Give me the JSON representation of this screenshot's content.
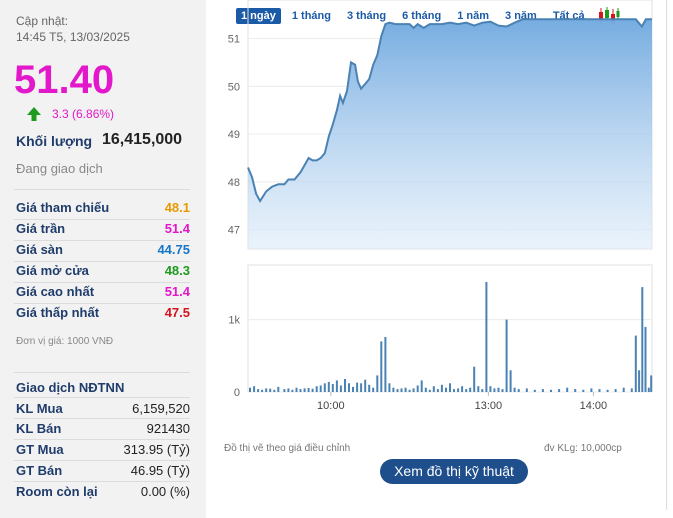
{
  "summary": {
    "update_label": "Cập nhật:",
    "update_time": "14:45 T5, 13/03/2025",
    "price": "51.40",
    "change": "3.3 (6.86%)",
    "volume_label": "Khối lượng",
    "volume_value": "16,415,000",
    "status": "Đang giao dịch"
  },
  "price_info": [
    {
      "label": "Giá tham chiếu",
      "value": "48.1",
      "color": "#e89a00"
    },
    {
      "label": "Giá trần",
      "value": "51.4",
      "color": "#e218ca"
    },
    {
      "label": "Giá sàn",
      "value": "44.75",
      "color": "#1677c8"
    },
    {
      "label": "Giá mở cửa",
      "value": "48.3",
      "color": "#1e9a1e"
    },
    {
      "label": "Giá cao nhất",
      "value": "51.4",
      "color": "#e218ca"
    },
    {
      "label": "Giá thấp nhất",
      "value": "47.5",
      "color": "#d4141f"
    }
  ],
  "unit_note": "Đơn vị giá: 1000 VNĐ",
  "foreign": {
    "title": "Giao dịch NĐTNN",
    "rows": [
      {
        "label": "KL Mua",
        "value": "6,159,520"
      },
      {
        "label": "KL Bán",
        "value": "921430"
      },
      {
        "label": "GT Mua",
        "value": "313.95 (Tỷ)"
      },
      {
        "label": "GT Bán",
        "value": "46.95 (Tỷ)"
      },
      {
        "label": "Room còn lại",
        "value": "0.00 (%)"
      }
    ]
  },
  "tabs": [
    "1 ngày",
    "1 tháng",
    "3 tháng",
    "6 tháng",
    "1 năm",
    "3 năm",
    "Tất cả"
  ],
  "active_tab": 0,
  "footnote_left": "Đồ thị vẽ theo giá điều chỉnh",
  "footnote_right": "đv KLg: 10,000cp",
  "tech_button": "Xem đồ thị kỹ thuật",
  "colors": {
    "up": "#1e9a1e",
    "accent": "#e218ca",
    "line": "#4a82b4",
    "volume": "#4a82b4",
    "button": "#1f4e8c"
  },
  "chart_data": {
    "type": "area",
    "price_axis": {
      "ticks": [
        "51",
        "50",
        "49",
        "48",
        "47"
      ],
      "range": [
        46.7,
        51.7
      ]
    },
    "volume_axis": {
      "ticks": [
        "1k",
        "0"
      ],
      "range": [
        0,
        1700
      ]
    },
    "x_ticks": [
      "10:00",
      "13:00",
      "14:00"
    ],
    "x_range": [
      0,
      1
    ],
    "price_series": [
      [
        0.0,
        48.3
      ],
      [
        0.01,
        48.1
      ],
      [
        0.02,
        47.75
      ],
      [
        0.03,
        47.6
      ],
      [
        0.045,
        47.8
      ],
      [
        0.06,
        47.9
      ],
      [
        0.075,
        47.95
      ],
      [
        0.09,
        47.95
      ],
      [
        0.1,
        48.05
      ],
      [
        0.115,
        48.05
      ],
      [
        0.13,
        48.2
      ],
      [
        0.14,
        48.35
      ],
      [
        0.15,
        48.5
      ],
      [
        0.16,
        48.45
      ],
      [
        0.17,
        48.45
      ],
      [
        0.18,
        48.5
      ],
      [
        0.19,
        48.6
      ],
      [
        0.2,
        48.95
      ],
      [
        0.21,
        49.2
      ],
      [
        0.22,
        49.5
      ],
      [
        0.228,
        49.8
      ],
      [
        0.235,
        49.65
      ],
      [
        0.245,
        49.9
      ],
      [
        0.255,
        50.5
      ],
      [
        0.265,
        50.45
      ],
      [
        0.272,
        50.1
      ],
      [
        0.28,
        49.95
      ],
      [
        0.29,
        50.05
      ],
      [
        0.3,
        50.15
      ],
      [
        0.31,
        50.45
      ],
      [
        0.32,
        50.65
      ],
      [
        0.33,
        51.05
      ],
      [
        0.34,
        51.3
      ],
      [
        0.35,
        51.33
      ],
      [
        0.365,
        51.3
      ],
      [
        0.38,
        51.3
      ],
      [
        0.4,
        51.3
      ],
      [
        0.41,
        51.22
      ],
      [
        0.42,
        51.3
      ],
      [
        0.435,
        51.22
      ],
      [
        0.45,
        51.3
      ],
      [
        0.48,
        51.3
      ],
      [
        0.5,
        51.33
      ],
      [
        0.52,
        51.3
      ],
      [
        0.54,
        51.33
      ],
      [
        0.56,
        51.27
      ],
      [
        0.58,
        51.33
      ],
      [
        0.6,
        51.35
      ],
      [
        0.62,
        51.27
      ],
      [
        0.64,
        51.25
      ],
      [
        0.66,
        51.33
      ],
      [
        0.68,
        51.4
      ],
      [
        0.7,
        51.4
      ],
      [
        0.75,
        51.4
      ],
      [
        0.8,
        51.4
      ],
      [
        0.85,
        51.4
      ],
      [
        0.9,
        51.4
      ],
      [
        0.95,
        51.4
      ],
      [
        0.96,
        51.4
      ],
      [
        0.975,
        51.25
      ],
      [
        0.985,
        51.4
      ],
      [
        1.0,
        51.4
      ]
    ],
    "volume_bars": [
      [
        0.005,
        60
      ],
      [
        0.015,
        80
      ],
      [
        0.025,
        40
      ],
      [
        0.035,
        30
      ],
      [
        0.045,
        50
      ],
      [
        0.055,
        45
      ],
      [
        0.065,
        30
      ],
      [
        0.075,
        70
      ],
      [
        0.09,
        40
      ],
      [
        0.1,
        50
      ],
      [
        0.11,
        30
      ],
      [
        0.12,
        60
      ],
      [
        0.13,
        40
      ],
      [
        0.14,
        50
      ],
      [
        0.15,
        55
      ],
      [
        0.16,
        45
      ],
      [
        0.17,
        80
      ],
      [
        0.18,
        90
      ],
      [
        0.19,
        120
      ],
      [
        0.2,
        140
      ],
      [
        0.21,
        110
      ],
      [
        0.22,
        160
      ],
      [
        0.23,
        90
      ],
      [
        0.24,
        180
      ],
      [
        0.25,
        120
      ],
      [
        0.26,
        70
      ],
      [
        0.27,
        130
      ],
      [
        0.28,
        120
      ],
      [
        0.29,
        170
      ],
      [
        0.3,
        100
      ],
      [
        0.31,
        60
      ],
      [
        0.32,
        230
      ],
      [
        0.33,
        700
      ],
      [
        0.34,
        760
      ],
      [
        0.35,
        120
      ],
      [
        0.36,
        60
      ],
      [
        0.37,
        40
      ],
      [
        0.38,
        50
      ],
      [
        0.39,
        60
      ],
      [
        0.4,
        30
      ],
      [
        0.41,
        50
      ],
      [
        0.42,
        90
      ],
      [
        0.43,
        160
      ],
      [
        0.44,
        60
      ],
      [
        0.45,
        30
      ],
      [
        0.46,
        80
      ],
      [
        0.47,
        40
      ],
      [
        0.48,
        100
      ],
      [
        0.49,
        60
      ],
      [
        0.5,
        120
      ],
      [
        0.51,
        40
      ],
      [
        0.52,
        50
      ],
      [
        0.53,
        80
      ],
      [
        0.54,
        40
      ],
      [
        0.55,
        60
      ],
      [
        0.56,
        350
      ],
      [
        0.57,
        80
      ],
      [
        0.58,
        40
      ],
      [
        0.59,
        1520
      ],
      [
        0.6,
        80
      ],
      [
        0.61,
        50
      ],
      [
        0.62,
        60
      ],
      [
        0.63,
        40
      ],
      [
        0.64,
        1000
      ],
      [
        0.65,
        300
      ],
      [
        0.66,
        60
      ],
      [
        0.67,
        40
      ],
      [
        0.69,
        50
      ],
      [
        0.71,
        30
      ],
      [
        0.73,
        40
      ],
      [
        0.75,
        30
      ],
      [
        0.77,
        40
      ],
      [
        0.79,
        60
      ],
      [
        0.81,
        40
      ],
      [
        0.83,
        30
      ],
      [
        0.85,
        50
      ],
      [
        0.87,
        40
      ],
      [
        0.89,
        30
      ],
      [
        0.91,
        40
      ],
      [
        0.93,
        60
      ],
      [
        0.95,
        50
      ],
      [
        0.96,
        780
      ],
      [
        0.968,
        300
      ],
      [
        0.976,
        1450
      ],
      [
        0.984,
        900
      ],
      [
        0.992,
        60
      ],
      [
        0.998,
        230
      ]
    ]
  }
}
